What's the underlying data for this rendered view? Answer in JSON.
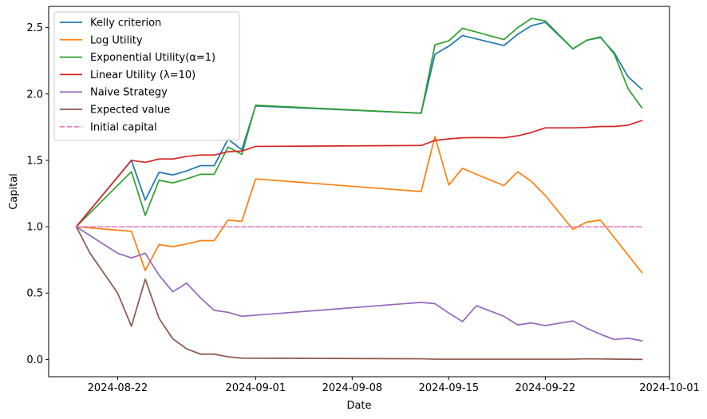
{
  "chart_data": {
    "type": "line",
    "title": "",
    "xlabel": "Date",
    "ylabel": "Capital",
    "x_axis": {
      "type": "date",
      "range": [
        "2024-08-17",
        "2024-10-01"
      ],
      "ticks": [
        "2024-08-22",
        "2024-09-01",
        "2024-09-08",
        "2024-09-15",
        "2024-09-22",
        "2024-10-01"
      ],
      "tick_labels": [
        "2024-08-22",
        "2024-09-01",
        "2024-09-08",
        "2024-09-15",
        "2024-09-22",
        "2024-10-01"
      ]
    },
    "y_axis": {
      "range": [
        -0.13,
        2.66
      ],
      "ticks": [
        0.0,
        0.5,
        1.0,
        1.5,
        2.0,
        2.5
      ],
      "tick_labels": [
        "0.0",
        "0.5",
        "1.0",
        "1.5",
        "2.0",
        "2.5"
      ]
    },
    "grid": false,
    "legend": {
      "position": "top-left"
    },
    "series": [
      {
        "name": "Kelly criterion",
        "color": "#1f77b4",
        "style": "solid",
        "points": [
          [
            "2024-08-19",
            1.0
          ],
          [
            "2024-08-23",
            1.5
          ],
          [
            "2024-08-24",
            1.2
          ],
          [
            "2024-08-25",
            1.41
          ],
          [
            "2024-08-26",
            1.39
          ],
          [
            "2024-08-27",
            1.42
          ],
          [
            "2024-08-28",
            1.46
          ],
          [
            "2024-08-29",
            1.46
          ],
          [
            "2024-08-30",
            1.66
          ],
          [
            "2024-08-31",
            1.58
          ],
          [
            "2024-09-01",
            1.91
          ],
          [
            "2024-09-13",
            1.855
          ],
          [
            "2024-09-14",
            2.3
          ],
          [
            "2024-09-15",
            2.36
          ],
          [
            "2024-09-16",
            2.44
          ],
          [
            "2024-09-19",
            2.365
          ],
          [
            "2024-09-20",
            2.45
          ],
          [
            "2024-09-21",
            2.515
          ],
          [
            "2024-09-22",
            2.54
          ],
          [
            "2024-09-24",
            2.34
          ],
          [
            "2024-09-25",
            2.405
          ],
          [
            "2024-09-26",
            2.425
          ],
          [
            "2024-09-27",
            2.31
          ],
          [
            "2024-09-28",
            2.13
          ],
          [
            "2024-09-29",
            2.035
          ]
        ]
      },
      {
        "name": "Log Utility",
        "color": "#ff7f0e",
        "style": "solid",
        "points": [
          [
            "2024-08-19",
            1.0
          ],
          [
            "2024-08-23",
            0.965
          ],
          [
            "2024-08-24",
            0.67
          ],
          [
            "2024-08-25",
            0.865
          ],
          [
            "2024-08-26",
            0.85
          ],
          [
            "2024-08-27",
            0.87
          ],
          [
            "2024-08-28",
            0.895
          ],
          [
            "2024-08-29",
            0.895
          ],
          [
            "2024-08-30",
            1.05
          ],
          [
            "2024-08-31",
            1.04
          ],
          [
            "2024-09-01",
            1.36
          ],
          [
            "2024-09-13",
            1.265
          ],
          [
            "2024-09-14",
            1.68
          ],
          [
            "2024-09-15",
            1.315
          ],
          [
            "2024-09-16",
            1.44
          ],
          [
            "2024-09-17",
            1.395
          ],
          [
            "2024-09-19",
            1.31
          ],
          [
            "2024-09-20",
            1.415
          ],
          [
            "2024-09-21",
            1.34
          ],
          [
            "2024-09-22",
            1.235
          ],
          [
            "2024-09-24",
            0.98
          ],
          [
            "2024-09-25",
            1.035
          ],
          [
            "2024-09-26",
            1.05
          ],
          [
            "2024-09-29",
            0.655
          ]
        ]
      },
      {
        "name": "Exponential Utility(α=1)",
        "color": "#2ca02c",
        "style": "solid",
        "points": [
          [
            "2024-08-19",
            1.0
          ],
          [
            "2024-08-23",
            1.415
          ],
          [
            "2024-08-24",
            1.085
          ],
          [
            "2024-08-25",
            1.35
          ],
          [
            "2024-08-26",
            1.33
          ],
          [
            "2024-08-27",
            1.36
          ],
          [
            "2024-08-28",
            1.395
          ],
          [
            "2024-08-29",
            1.395
          ],
          [
            "2024-08-30",
            1.6
          ],
          [
            "2024-08-31",
            1.545
          ],
          [
            "2024-09-01",
            1.915
          ],
          [
            "2024-09-13",
            1.855
          ],
          [
            "2024-09-14",
            2.37
          ],
          [
            "2024-09-15",
            2.4
          ],
          [
            "2024-09-16",
            2.495
          ],
          [
            "2024-09-19",
            2.41
          ],
          [
            "2024-09-20",
            2.5
          ],
          [
            "2024-09-21",
            2.57
          ],
          [
            "2024-09-22",
            2.55
          ],
          [
            "2024-09-24",
            2.34
          ],
          [
            "2024-09-25",
            2.405
          ],
          [
            "2024-09-26",
            2.43
          ],
          [
            "2024-09-27",
            2.3
          ],
          [
            "2024-09-28",
            2.04
          ],
          [
            "2024-09-29",
            1.895
          ]
        ]
      },
      {
        "name": "Linear Utility ($\\lambda$=10)",
        "display_name": "Linear Utility (λ=10)",
        "color": "#d62728",
        "style": "solid",
        "points": [
          [
            "2024-08-19",
            1.0
          ],
          [
            "2024-08-23",
            1.5
          ],
          [
            "2024-08-24",
            1.485
          ],
          [
            "2024-08-25",
            1.51
          ],
          [
            "2024-08-26",
            1.51
          ],
          [
            "2024-08-27",
            1.53
          ],
          [
            "2024-08-28",
            1.54
          ],
          [
            "2024-08-29",
            1.54
          ],
          [
            "2024-08-30",
            1.565
          ],
          [
            "2024-08-31",
            1.57
          ],
          [
            "2024-09-01",
            1.605
          ],
          [
            "2024-09-13",
            1.612
          ],
          [
            "2024-09-14",
            1.65
          ],
          [
            "2024-09-15",
            1.662
          ],
          [
            "2024-09-16",
            1.67
          ],
          [
            "2024-09-17",
            1.672
          ],
          [
            "2024-09-19",
            1.67
          ],
          [
            "2024-09-20",
            1.685
          ],
          [
            "2024-09-21",
            1.71
          ],
          [
            "2024-09-22",
            1.745
          ],
          [
            "2024-09-24",
            1.745
          ],
          [
            "2024-09-25",
            1.748
          ],
          [
            "2024-09-26",
            1.755
          ],
          [
            "2024-09-27",
            1.755
          ],
          [
            "2024-09-28",
            1.765
          ],
          [
            "2024-09-29",
            1.8
          ]
        ]
      },
      {
        "name": "Naive Strategy",
        "color": "#9467bd",
        "style": "solid",
        "points": [
          [
            "2024-08-19",
            1.0
          ],
          [
            "2024-08-22",
            0.8
          ],
          [
            "2024-08-23",
            0.765
          ],
          [
            "2024-08-24",
            0.8
          ],
          [
            "2024-08-25",
            0.635
          ],
          [
            "2024-08-26",
            0.51
          ],
          [
            "2024-08-27",
            0.575
          ],
          [
            "2024-08-28",
            0.465
          ],
          [
            "2024-08-29",
            0.37
          ],
          [
            "2024-08-30",
            0.355
          ],
          [
            "2024-08-31",
            0.325
          ],
          [
            "2024-09-13",
            0.43
          ],
          [
            "2024-09-14",
            0.42
          ],
          [
            "2024-09-15",
            0.35
          ],
          [
            "2024-09-16",
            0.285
          ],
          [
            "2024-09-17",
            0.405
          ],
          [
            "2024-09-19",
            0.325
          ],
          [
            "2024-09-20",
            0.26
          ],
          [
            "2024-09-21",
            0.275
          ],
          [
            "2024-09-22",
            0.255
          ],
          [
            "2024-09-24",
            0.29
          ],
          [
            "2024-09-25",
            0.235
          ],
          [
            "2024-09-26",
            0.19
          ],
          [
            "2024-09-27",
            0.15
          ],
          [
            "2024-09-28",
            0.16
          ],
          [
            "2024-09-29",
            0.14
          ]
        ]
      },
      {
        "name": "Expected value",
        "color": "#8c564b",
        "style": "solid",
        "points": [
          [
            "2024-08-19",
            1.0
          ],
          [
            "2024-08-20",
            0.8
          ],
          [
            "2024-08-22",
            0.5
          ],
          [
            "2024-08-23",
            0.25
          ],
          [
            "2024-08-24",
            0.605
          ],
          [
            "2024-08-25",
            0.31
          ],
          [
            "2024-08-26",
            0.155
          ],
          [
            "2024-08-27",
            0.08
          ],
          [
            "2024-08-28",
            0.04
          ],
          [
            "2024-08-29",
            0.04
          ],
          [
            "2024-08-30",
            0.02
          ],
          [
            "2024-08-31",
            0.01
          ],
          [
            "2024-09-13",
            0.005
          ],
          [
            "2024-09-14",
            0.002
          ],
          [
            "2024-09-24",
            0.002
          ],
          [
            "2024-09-25",
            0.005
          ],
          [
            "2024-09-29",
            0.0
          ]
        ]
      },
      {
        "name": "Initial capital",
        "color": "#e377c2",
        "style": "dashed",
        "points": [
          [
            "2024-08-19",
            1.0
          ],
          [
            "2024-09-29",
            1.0
          ]
        ]
      }
    ]
  }
}
